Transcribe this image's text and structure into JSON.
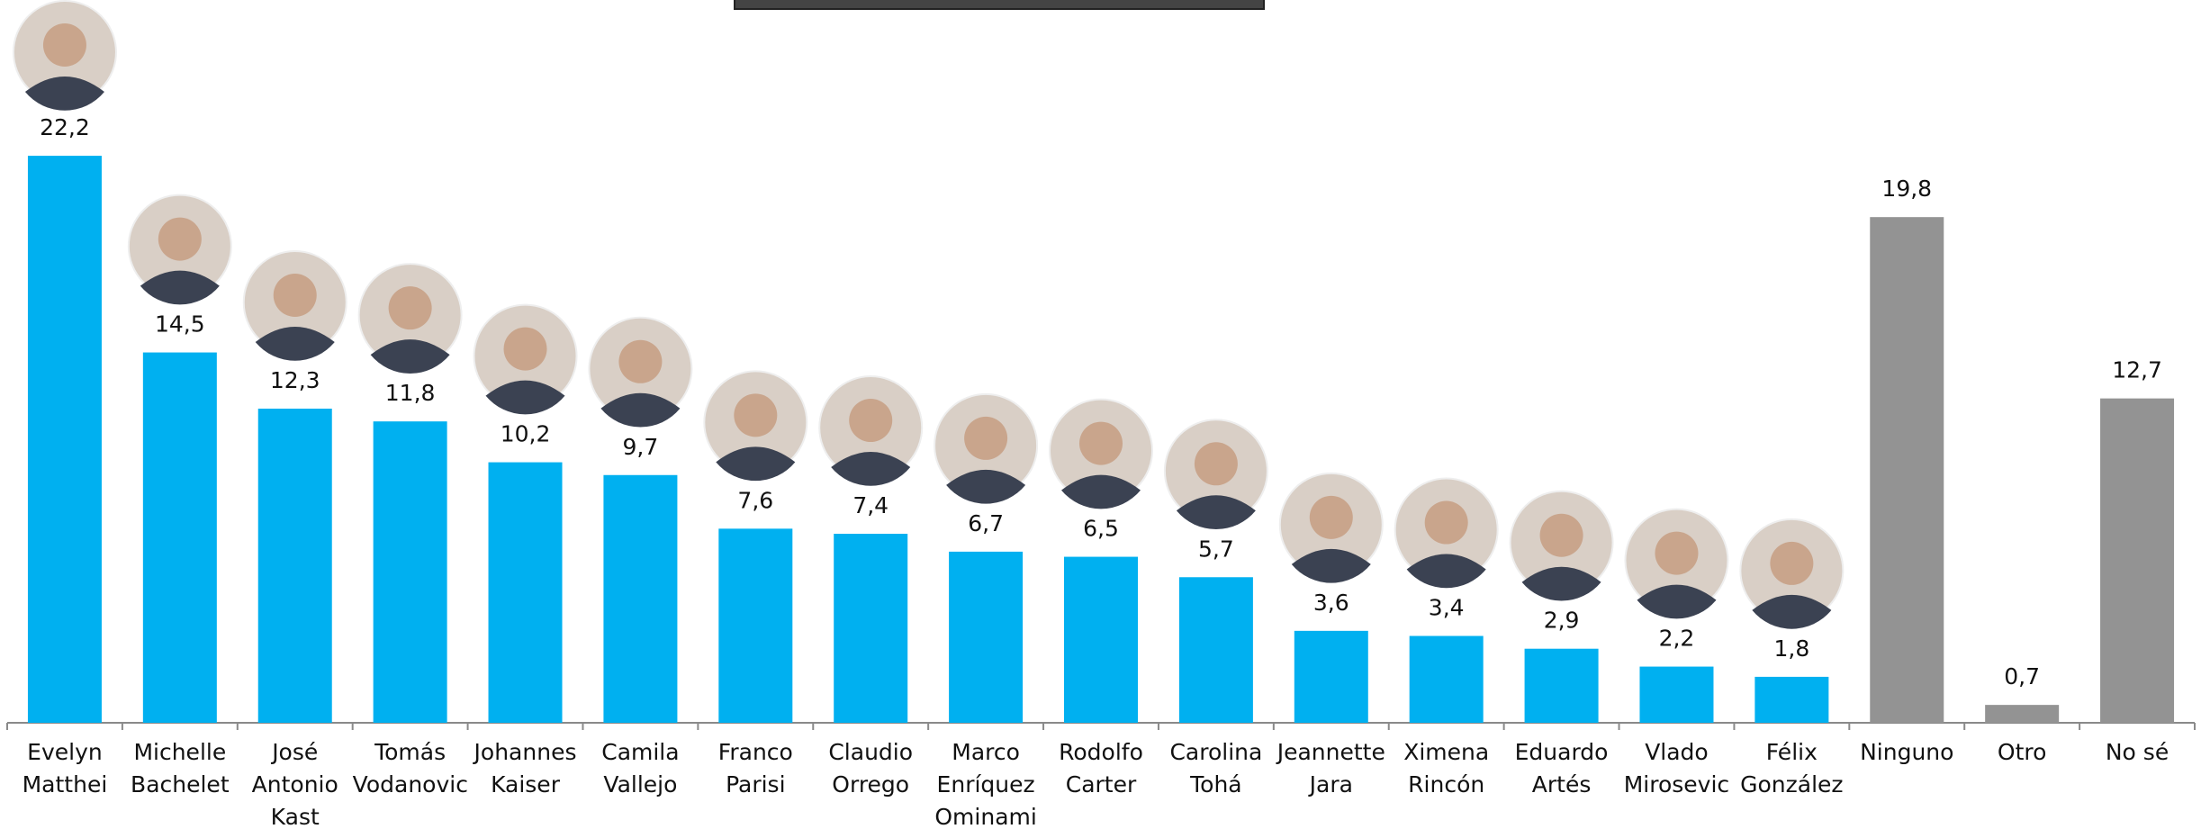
{
  "chart_data": {
    "type": "bar",
    "categories": [
      "Evelyn Matthei",
      "Michelle Bachelet",
      "José Antonio Kast",
      "Tomás Vodanovic",
      "Johannes Kaiser",
      "Camila Vallejo",
      "Franco Parisi",
      "Claudio Orrego",
      "Marco Enríquez Ominami",
      "Rodolfo Carter",
      "Carolina Tohá",
      "Jeannette Jara",
      "Ximena Rincón",
      "Eduardo Artés",
      "Vlado Mirosevic",
      "Félix González",
      "Ninguno",
      "Otro",
      "No sé"
    ],
    "values": [
      22.2,
      14.5,
      12.3,
      11.8,
      10.2,
      9.7,
      7.6,
      7.4,
      6.7,
      6.5,
      5.7,
      3.6,
      3.4,
      2.9,
      2.2,
      1.8,
      19.8,
      0.7,
      12.7
    ],
    "value_labels": [
      "22,2",
      "14,5",
      "12,3",
      "11,8",
      "10,2",
      "9,7",
      "7,6",
      "7,4",
      "6,7",
      "6,5",
      "5,7",
      "3,6",
      "3,4",
      "2,9",
      "2,2",
      "1,8",
      "19,8",
      "0,7",
      "12,7"
    ],
    "colors": [
      "#00b0f0",
      "#00b0f0",
      "#00b0f0",
      "#00b0f0",
      "#00b0f0",
      "#00b0f0",
      "#00b0f0",
      "#00b0f0",
      "#00b0f0",
      "#00b0f0",
      "#00b0f0",
      "#00b0f0",
      "#00b0f0",
      "#00b0f0",
      "#00b0f0",
      "#00b0f0",
      "#939393",
      "#939393",
      "#939393"
    ],
    "ylim": [
      0,
      28.3
    ]
  }
}
